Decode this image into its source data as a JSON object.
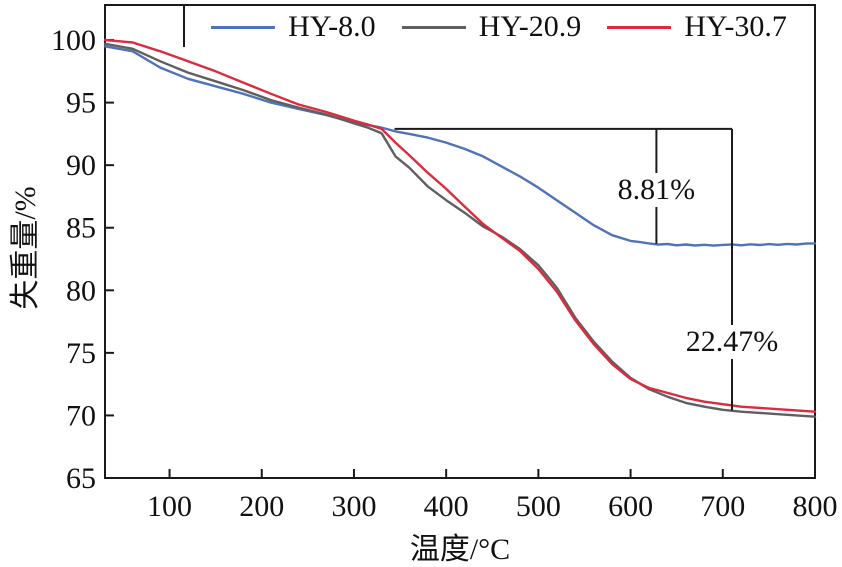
{
  "figure": {
    "background": "#ffffff",
    "frame_color": "#1a1a1a"
  },
  "chart_data": {
    "type": "line",
    "title": "",
    "xlabel": "温度/°C",
    "ylabel": "失重量/%",
    "xlim": [
      30,
      800
    ],
    "ylim": [
      65,
      102.8
    ],
    "xticks": [
      100,
      200,
      300,
      400,
      500,
      600,
      700,
      800
    ],
    "yticks": [
      65,
      70,
      75,
      80,
      85,
      90,
      95,
      100
    ],
    "grid": false,
    "legend_position": "top-inside",
    "series": [
      {
        "name": "HY-8.0",
        "color": "#4f72b8",
        "x": [
          30,
          60,
          90,
          120,
          150,
          180,
          210,
          240,
          270,
          300,
          315,
          330,
          345,
          360,
          380,
          400,
          420,
          440,
          460,
          480,
          500,
          520,
          540,
          560,
          580,
          600,
          610,
          620,
          630,
          640,
          650,
          660,
          670,
          680,
          690,
          700,
          710,
          720,
          730,
          740,
          750,
          760,
          770,
          780,
          790,
          800
        ],
        "values": [
          99.5,
          99.1,
          97.8,
          96.9,
          96.3,
          95.7,
          95.0,
          94.5,
          94.0,
          93.4,
          93.2,
          93.0,
          92.7,
          92.5,
          92.2,
          91.8,
          91.3,
          90.7,
          89.9,
          89.1,
          88.2,
          87.2,
          86.2,
          85.2,
          84.4,
          83.95,
          83.85,
          83.75,
          83.65,
          83.7,
          83.6,
          83.66,
          83.58,
          83.64,
          83.57,
          83.63,
          83.67,
          83.6,
          83.68,
          83.62,
          83.69,
          83.64,
          83.71,
          83.66,
          83.73,
          83.75
        ]
      },
      {
        "name": "HY-20.9",
        "color": "#5f5f5f",
        "x": [
          30,
          60,
          90,
          120,
          150,
          180,
          210,
          240,
          270,
          300,
          315,
          330,
          345,
          360,
          380,
          400,
          420,
          440,
          460,
          480,
          500,
          520,
          540,
          560,
          580,
          600,
          620,
          640,
          660,
          680,
          700,
          720,
          740,
          760,
          780,
          800
        ],
        "values": [
          99.7,
          99.3,
          98.3,
          97.4,
          96.7,
          96.0,
          95.2,
          94.6,
          94.05,
          93.35,
          93.0,
          92.55,
          90.7,
          89.8,
          88.3,
          87.2,
          86.2,
          85.1,
          84.3,
          83.3,
          82.0,
          80.2,
          77.8,
          75.9,
          74.3,
          73.0,
          72.1,
          71.5,
          71.0,
          70.7,
          70.45,
          70.3,
          70.2,
          70.1,
          70.0,
          69.9
        ]
      },
      {
        "name": "HY-30.7",
        "color": "#dc2b3c",
        "x": [
          30,
          60,
          90,
          120,
          150,
          180,
          210,
          240,
          270,
          300,
          315,
          330,
          345,
          360,
          380,
          400,
          420,
          440,
          460,
          480,
          500,
          520,
          540,
          560,
          580,
          600,
          620,
          640,
          660,
          680,
          700,
          720,
          740,
          760,
          780,
          800
        ],
        "values": [
          100.0,
          99.8,
          99.1,
          98.3,
          97.5,
          96.6,
          95.7,
          94.85,
          94.25,
          93.55,
          93.25,
          92.9,
          91.8,
          90.8,
          89.4,
          88.1,
          86.7,
          85.3,
          84.2,
          83.15,
          81.7,
          79.9,
          77.6,
          75.7,
          74.1,
          72.9,
          72.2,
          71.8,
          71.4,
          71.1,
          70.9,
          70.7,
          70.6,
          70.5,
          70.4,
          70.3
        ]
      }
    ],
    "annotations": [
      {
        "id": "drop1",
        "type": "vdrop",
        "x": 628,
        "y_from": 92.9,
        "y_to": 83.72,
        "label": "8.81%",
        "label_y": 88.0
      },
      {
        "id": "drop2",
        "type": "vdrop",
        "x": 710,
        "y_from": 92.9,
        "y_to": 70.4,
        "label": "22.47%",
        "label_y": 75.9
      },
      {
        "id": "bracket",
        "type": "hline",
        "y": 92.9,
        "x_from": 344,
        "x_to": 710,
        "label": ""
      }
    ]
  }
}
